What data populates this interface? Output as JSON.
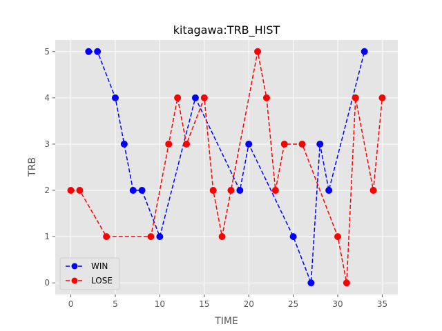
{
  "chart_data": {
    "type": "line",
    "title": "kitagawa:TRB_HIST",
    "xlabel": "TIME",
    "ylabel": "TRB",
    "xlim": [
      -1.75,
      36.75
    ],
    "ylim": [
      -0.25,
      5.25
    ],
    "xticks": [
      0,
      5,
      10,
      15,
      20,
      25,
      30,
      35
    ],
    "yticks": [
      0,
      1,
      2,
      3,
      4,
      5
    ],
    "grid": true,
    "legend_position": "lower-left",
    "series": [
      {
        "name": "WIN",
        "color": "#0000ff",
        "x": [
          2,
          3,
          5,
          6,
          7,
          8,
          10,
          14,
          19,
          20,
          25,
          27,
          28,
          29,
          33
        ],
        "y": [
          5,
          5,
          4,
          3,
          2,
          2,
          1,
          4,
          2,
          3,
          1,
          0,
          3,
          2,
          5
        ]
      },
      {
        "name": "LOSE",
        "color": "#ff0000",
        "x": [
          0,
          1,
          4,
          9,
          11,
          12,
          13,
          15,
          16,
          17,
          18,
          21,
          22,
          23,
          24,
          26,
          30,
          31,
          32,
          34,
          35
        ],
        "y": [
          2,
          2,
          1,
          1,
          3,
          4,
          3,
          4,
          2,
          1,
          2,
          5,
          4,
          2,
          3,
          3,
          1,
          0,
          4,
          2,
          4
        ]
      }
    ]
  }
}
